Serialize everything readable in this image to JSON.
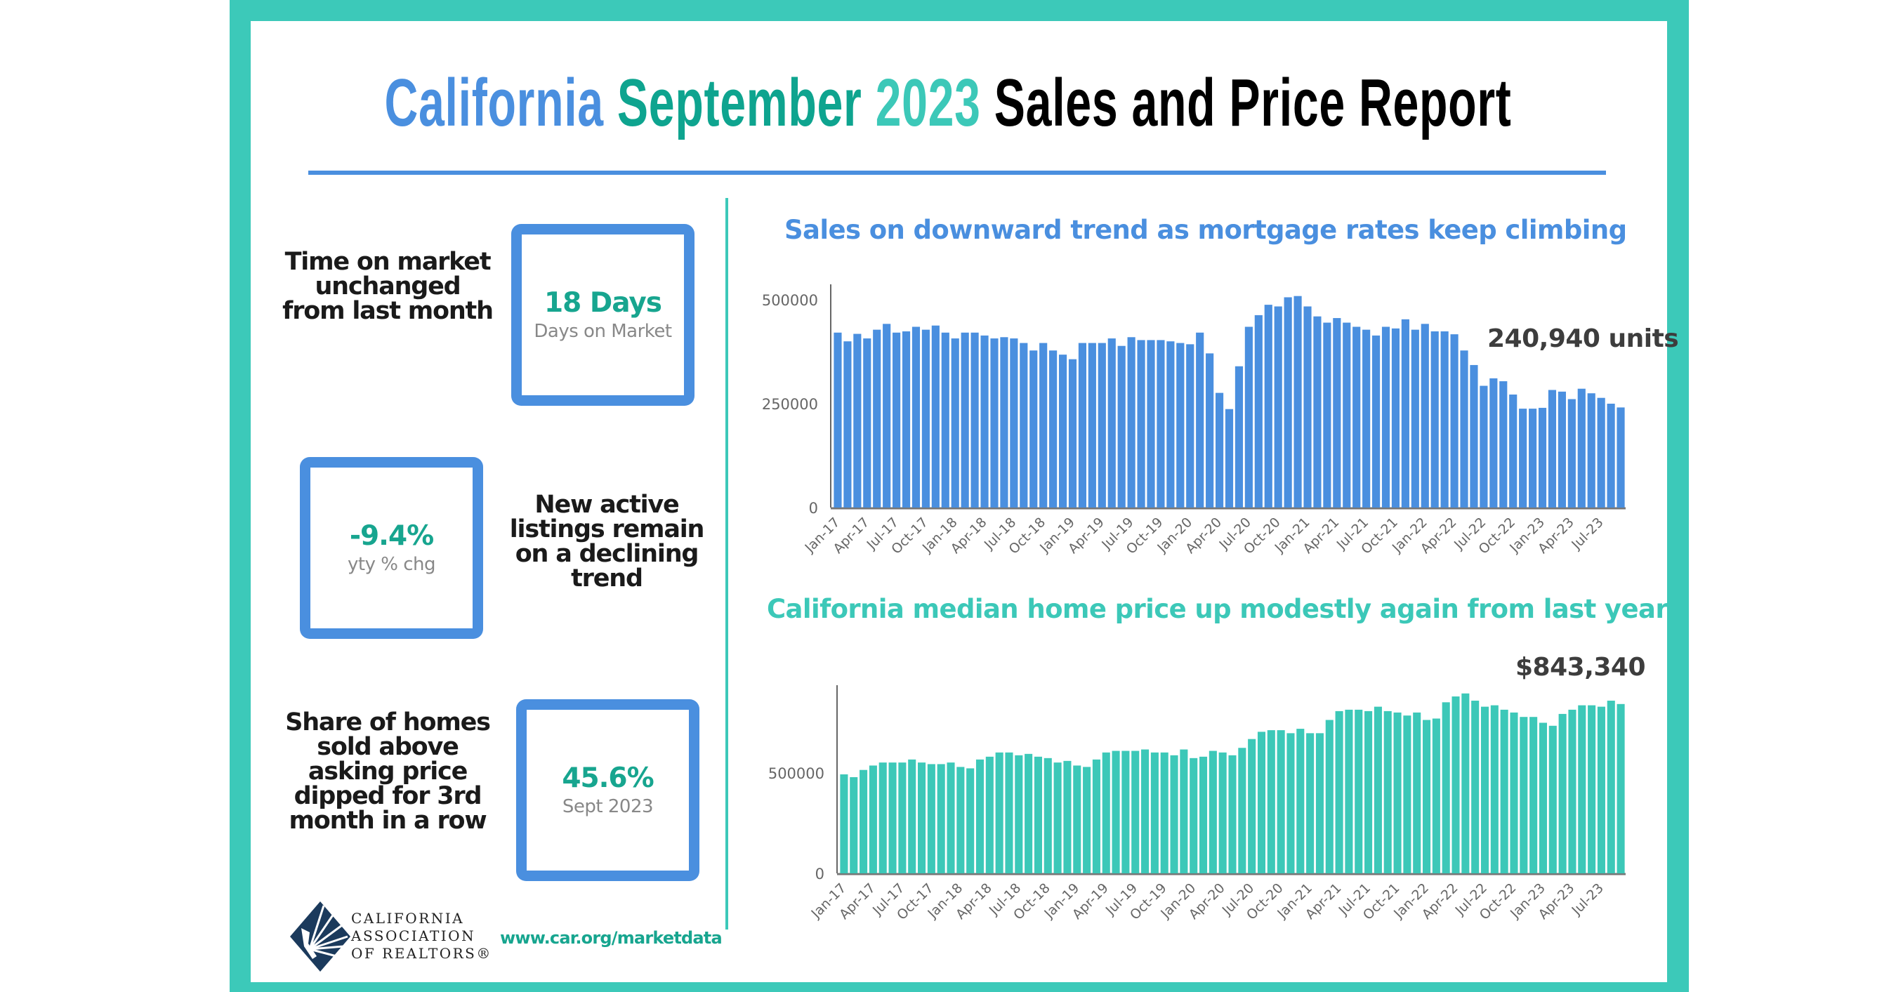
{
  "title": {
    "part1": "California",
    "part2": "September",
    "part3": "2023",
    "part4": "Sales and Price Report"
  },
  "colors": {
    "frame": "#3cc9b9",
    "blue": "#4a8fdf",
    "teal": "#0ea48f",
    "light_teal": "#3cc8b8",
    "stat_green": "#17a58f",
    "logo_navy": "#1b3a5c"
  },
  "stats": [
    {
      "description": "Time on market unchanged from last month",
      "value": "18 Days",
      "label": "Days on Market"
    },
    {
      "description": "New active listings remain on a declining trend",
      "value": "-9.4%",
      "label": "yty % chg"
    },
    {
      "description": "Share of homes sold above asking price dipped for 3rd month in a row",
      "value": "45.6%",
      "label": "Sept 2023"
    }
  ],
  "footer": {
    "logo_lines": [
      "CALIFORNIA",
      "ASSOCIATION",
      "OF REALTORS®"
    ],
    "url": "www.car.org/marketdata"
  },
  "chart_data": [
    {
      "type": "bar",
      "title": "Sales on downward trend as mortgage rates keep climbing",
      "annotation": "240,940 units",
      "color": "#4a8fdf",
      "ylim": [
        0,
        500000
      ],
      "yticks": [
        "500000",
        "250000",
        "0"
      ],
      "ytick_values": [
        500000,
        250000,
        0
      ],
      "grid": false,
      "x_tick_labels": [
        "Jan-17",
        "Apr-17",
        "Jul-17",
        "Oct-17",
        "Jan-18",
        "Apr-18",
        "Jul-18",
        "Oct-18",
        "Jan-19",
        "Apr-19",
        "Jul-19",
        "Oct-19",
        "Jan-20",
        "Apr-20",
        "Jul-20",
        "Oct-20",
        "Jan-21",
        "Apr-21",
        "Jul-21",
        "Oct-21",
        "Jan-22",
        "Apr-22",
        "Jul-22",
        "Oct-22",
        "Jan-23",
        "Apr-23",
        "Jul-23"
      ],
      "first_month": "Jan-17",
      "last_month": "Sep-23",
      "values": [
        421000,
        400000,
        418000,
        407000,
        428000,
        442000,
        421000,
        424000,
        435000,
        428000,
        438000,
        421000,
        407000,
        421000,
        421000,
        414000,
        407000,
        410000,
        407000,
        396000,
        378000,
        396000,
        378000,
        368000,
        357000,
        396000,
        396000,
        396000,
        407000,
        389000,
        410000,
        403000,
        403000,
        403000,
        400000,
        396000,
        393000,
        421000,
        371000,
        276000,
        237000,
        340000,
        435000,
        463000,
        488000,
        484000,
        506000,
        509000,
        484000,
        460000,
        445000,
        456000,
        445000,
        435000,
        428000,
        414000,
        435000,
        431000,
        453000,
        428000,
        442000,
        424000,
        424000,
        417000,
        378000,
        343000,
        293000,
        311000,
        304000,
        272000,
        238000,
        238000,
        240000,
        283000,
        279000,
        261000,
        286000,
        275000,
        264000,
        250000,
        240940
      ]
    },
    {
      "type": "bar",
      "title": "California median home price up modestly again from last year",
      "annotation": "$843,340",
      "color": "#3cc8b8",
      "ylim": [
        0,
        500000
      ],
      "yticks": [
        "500000",
        "0"
      ],
      "ytick_values": [
        500000,
        0
      ],
      "grid": false,
      "x_tick_labels": [
        "Jan-17",
        "Apr-17",
        "Jul-17",
        "Oct-17",
        "Jan-18",
        "Apr-18",
        "Jul-18",
        "Oct-18",
        "Jan-19",
        "Apr-19",
        "Jul-19",
        "Oct-19",
        "Jan-20",
        "Apr-20",
        "Jul-20",
        "Oct-20",
        "Jan-21",
        "Apr-21",
        "Jul-21",
        "Oct-21",
        "Jan-22",
        "Apr-22",
        "Jul-22",
        "Oct-22",
        "Jan-23",
        "Apr-23",
        "Jul-23"
      ],
      "first_month": "Jan-17",
      "last_month": "Sep-23",
      "values": [
        493000,
        479000,
        515000,
        537000,
        552000,
        552000,
        552000,
        567000,
        552000,
        544000,
        544000,
        552000,
        530000,
        523000,
        567000,
        581000,
        602000,
        602000,
        588000,
        595000,
        581000,
        574000,
        552000,
        560000,
        537000,
        530000,
        567000,
        602000,
        610000,
        610000,
        610000,
        617000,
        602000,
        602000,
        588000,
        617000,
        574000,
        581000,
        610000,
        602000,
        588000,
        625000,
        669000,
        705000,
        713000,
        713000,
        698000,
        720000,
        698000,
        698000,
        764000,
        808000,
        815000,
        815000,
        808000,
        830000,
        808000,
        801000,
        786000,
        801000,
        764000,
        771000,
        852000,
        881000,
        896000,
        860000,
        830000,
        837000,
        815000,
        801000,
        779000,
        779000,
        750000,
        735000,
        794000,
        815000,
        837000,
        837000,
        830000,
        860000,
        843340
      ]
    }
  ]
}
